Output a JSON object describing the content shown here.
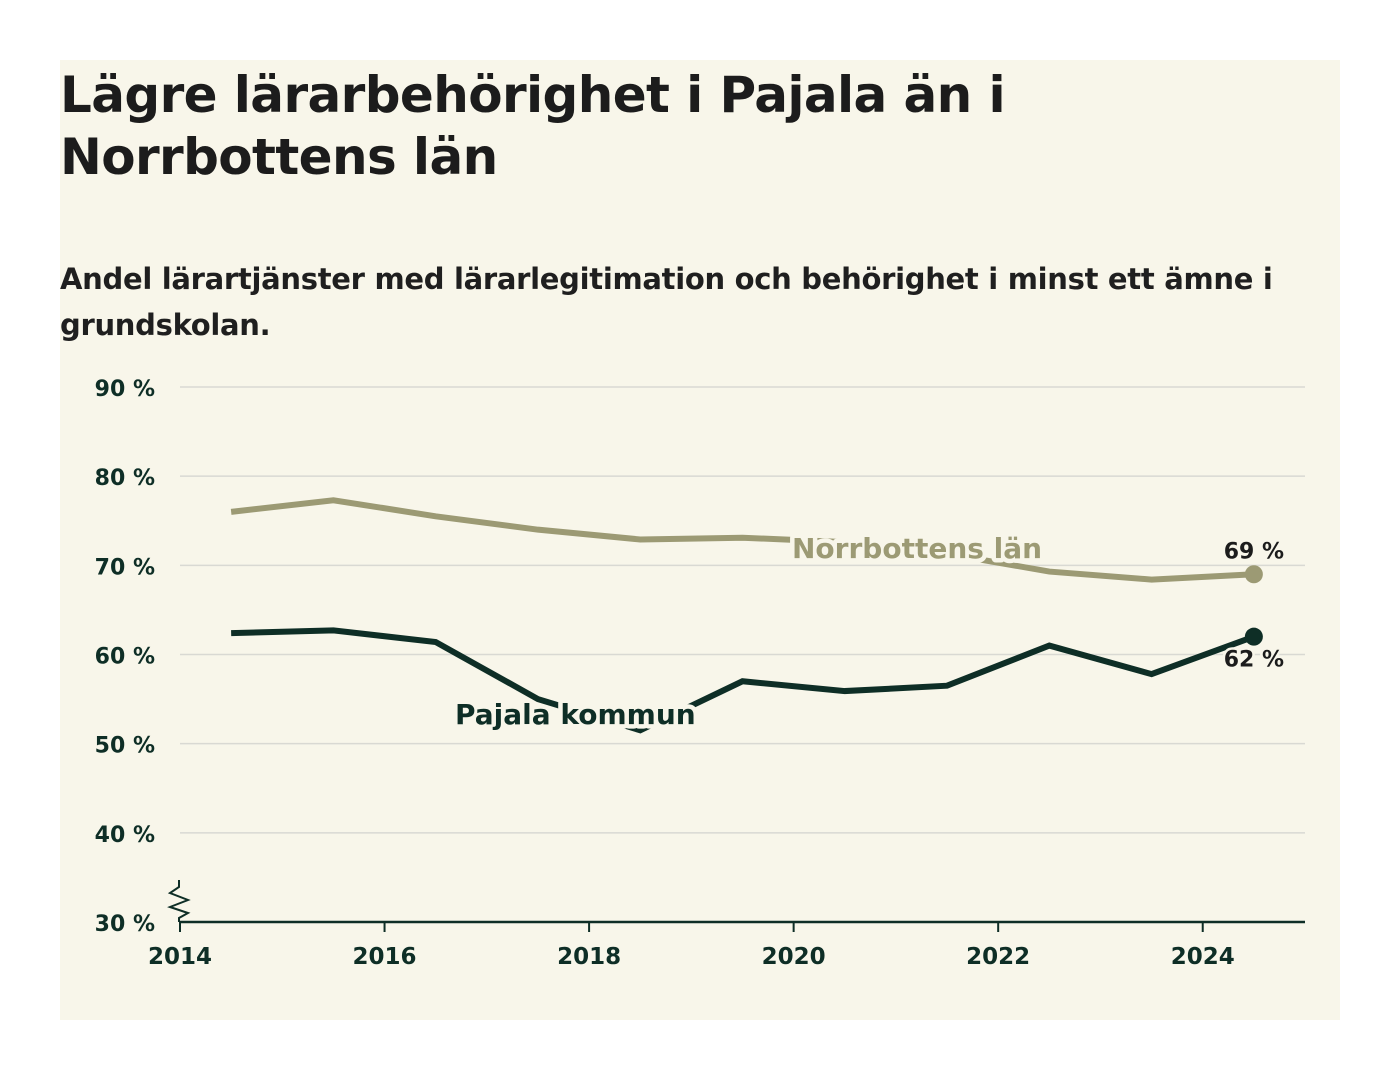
{
  "title": "Lägre lärarbehörighet i Pajala än i Norrbottens län",
  "subtitle": "Andel lärartjänster med lärarlegitimation och behörighet i minst ett ämne i grundskolan.",
  "colors": {
    "background": "#f8f6ea",
    "norrbotten": "#9c9a74",
    "pajala": "#0e2e26",
    "grid": "#d9d9d3",
    "axis": "#0e2e26"
  },
  "chart_data": {
    "type": "line",
    "xlim": [
      2014,
      2025
    ],
    "ylim": [
      30,
      90
    ],
    "y_ticks": [
      30,
      40,
      50,
      60,
      70,
      80,
      90
    ],
    "y_tick_labels": [
      "30 %",
      "40 %",
      "50 %",
      "60 %",
      "70 %",
      "80 %",
      "90 %"
    ],
    "x_ticks": [
      2014,
      2016,
      2018,
      2020,
      2022,
      2024
    ],
    "x_tick_labels": [
      "2014",
      "2016",
      "2018",
      "2020",
      "2022",
      "2024"
    ],
    "grid": true,
    "axis_break": true,
    "series": [
      {
        "name": "Norrbottens län",
        "color": "#9c9a74",
        "x": [
          2014.5,
          2015.5,
          2016.5,
          2017.5,
          2018.5,
          2019.5,
          2020.5,
          2021.5,
          2022.5,
          2023.5,
          2024.5
        ],
        "values": [
          76,
          77.3,
          75.5,
          74,
          72.9,
          73.1,
          72.6,
          71.3,
          69.3,
          68.4,
          69
        ],
        "end_label": "69 %"
      },
      {
        "name": "Pajala kommun",
        "color": "#0e2e26",
        "x": [
          2014.5,
          2015.5,
          2016.5,
          2017.5,
          2018.5,
          2019.5,
          2020.5,
          2021.5,
          2022.5,
          2023.5,
          2024.5
        ],
        "values": [
          62.4,
          62.7,
          61.4,
          55,
          51.5,
          57,
          55.9,
          56.5,
          61,
          57.8,
          62
        ],
        "end_label": "62 %"
      }
    ]
  }
}
